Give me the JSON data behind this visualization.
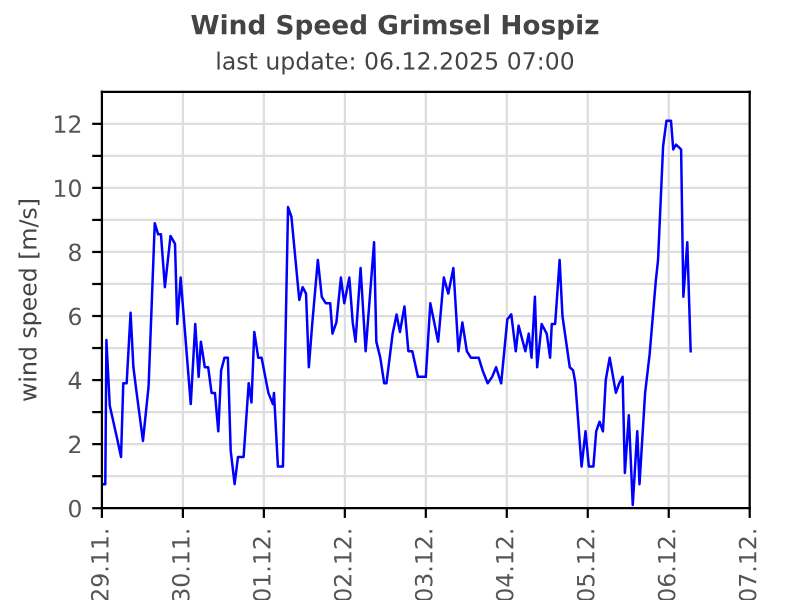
{
  "chart_data": {
    "type": "line",
    "title": "Wind Speed Grimsel Hospiz",
    "subtitle": "last update: 06.12.2025 07:00",
    "ylabel": "wind speed [m/s]",
    "x": [
      "2025-11-29T00:00",
      "2025-11-29T01:00",
      "2025-11-29T01:20",
      "2025-11-29T02:20",
      "2025-11-29T04:40",
      "2025-11-29T05:40",
      "2025-11-29T06:20",
      "2025-11-29T07:20",
      "2025-11-29T08:30",
      "2025-11-29T09:20",
      "2025-11-29T10:10",
      "2025-11-29T12:10",
      "2025-11-29T13:50",
      "2025-11-29T15:40",
      "2025-11-29T16:40",
      "2025-11-29T17:30",
      "2025-11-29T18:40",
      "2025-11-29T20:20",
      "2025-11-29T21:40",
      "2025-11-29T22:20",
      "2025-11-29T23:20",
      "2025-11-30T02:20",
      "2025-11-30T03:40",
      "2025-11-30T04:40",
      "2025-11-30T05:20",
      "2025-11-30T06:30",
      "2025-11-30T07:30",
      "2025-11-30T08:30",
      "2025-11-30T09:30",
      "2025-11-30T10:30",
      "2025-11-30T11:20",
      "2025-11-30T12:20",
      "2025-11-30T13:20",
      "2025-11-30T14:10",
      "2025-11-30T15:20",
      "2025-11-30T16:20",
      "2025-11-30T18:00",
      "2025-11-30T19:30",
      "2025-11-30T20:20",
      "2025-11-30T21:10",
      "2025-11-30T22:20",
      "2025-11-30T23:20",
      "2025-12-01T01:20",
      "2025-12-01T02:40",
      "2025-12-01T03:00",
      "2025-12-01T04:10",
      "2025-12-01T05:40",
      "2025-12-01T07:10",
      "2025-12-01T08:10",
      "2025-12-01T10:30",
      "2025-12-01T11:30",
      "2025-12-01T12:30",
      "2025-12-01T13:20",
      "2025-12-01T14:20",
      "2025-12-01T16:00",
      "2025-12-01T17:10",
      "2025-12-01T18:20",
      "2025-12-01T19:40",
      "2025-12-01T20:20",
      "2025-12-01T21:30",
      "2025-12-01T22:50",
      "2025-12-01T23:50",
      "2025-12-02T01:20",
      "2025-12-02T02:20",
      "2025-12-02T03:10",
      "2025-12-02T04:40",
      "2025-12-02T06:10",
      "2025-12-02T08:40",
      "2025-12-02T09:20",
      "2025-12-02T10:30",
      "2025-12-02T11:40",
      "2025-12-02T12:20",
      "2025-12-02T14:10",
      "2025-12-02T15:20",
      "2025-12-02T16:20",
      "2025-12-02T17:40",
      "2025-12-02T18:50",
      "2025-12-02T20:00",
      "2025-12-02T21:40",
      "2025-12-03T00:00",
      "2025-12-03T01:20",
      "2025-12-03T03:40",
      "2025-12-03T05:20",
      "2025-12-03T06:40",
      "2025-12-03T08:10",
      "2025-12-03T09:40",
      "2025-12-03T10:50",
      "2025-12-03T12:10",
      "2025-12-03T13:20",
      "2025-12-03T14:40",
      "2025-12-03T15:40",
      "2025-12-03T16:50",
      "2025-12-03T18:20",
      "2025-12-03T19:40",
      "2025-12-03T20:50",
      "2025-12-03T22:20",
      "2025-12-04T00:10",
      "2025-12-04T01:20",
      "2025-12-04T02:40",
      "2025-12-04T03:30",
      "2025-12-04T05:30",
      "2025-12-04T06:30",
      "2025-12-04T07:20",
      "2025-12-04T08:20",
      "2025-12-04T09:00",
      "2025-12-04T10:20",
      "2025-12-04T11:50",
      "2025-12-04T12:50",
      "2025-12-04T13:20",
      "2025-12-04T14:20",
      "2025-12-04T15:40",
      "2025-12-04T16:30",
      "2025-12-04T18:40",
      "2025-12-04T19:40",
      "2025-12-04T20:20",
      "2025-12-04T22:10",
      "2025-12-04T23:20",
      "2025-12-05T00:20",
      "2025-12-05T01:40",
      "2025-12-05T02:30",
      "2025-12-05T03:30",
      "2025-12-05T04:30",
      "2025-12-05T05:20",
      "2025-12-05T06:30",
      "2025-12-05T08:20",
      "2025-12-05T09:20",
      "2025-12-05T10:20",
      "2025-12-05T11:00",
      "2025-12-05T12:10",
      "2025-12-05T13:20",
      "2025-12-05T14:40",
      "2025-12-05T15:20",
      "2025-12-05T17:00",
      "2025-12-05T18:20",
      "2025-12-05T20:10",
      "2025-12-05T20:50",
      "2025-12-05T22:20",
      "2025-12-05T23:20",
      "2025-12-06T00:40",
      "2025-12-06T01:20",
      "2025-12-06T02:10",
      "2025-12-06T03:40",
      "2025-12-06T04:20",
      "2025-12-06T05:30",
      "2025-12-06T06:30"
    ],
    "series": [
      {
        "color": "#0000ff",
        "values": [
          0.75,
          0.75,
          5.25,
          3.2,
          2.1,
          1.6,
          3.9,
          3.9,
          6.1,
          4.4,
          3.7,
          2.1,
          3.8,
          8.9,
          8.55,
          8.55,
          6.9,
          8.5,
          8.25,
          5.75,
          7.2,
          3.25,
          5.75,
          4.1,
          5.2,
          4.4,
          4.4,
          3.6,
          3.6,
          2.4,
          4.3,
          4.7,
          4.7,
          1.8,
          0.75,
          1.6,
          1.6,
          3.9,
          3.3,
          5.5,
          4.7,
          4.7,
          3.6,
          3.25,
          3.6,
          1.3,
          1.3,
          9.4,
          9.1,
          6.5,
          6.9,
          6.7,
          4.4,
          5.75,
          7.75,
          6.6,
          6.4,
          6.4,
          5.45,
          5.8,
          7.2,
          6.4,
          7.2,
          5.8,
          5.2,
          7.5,
          4.9,
          8.3,
          5.2,
          4.7,
          3.9,
          3.9,
          5.45,
          6.05,
          5.5,
          6.3,
          4.9,
          4.9,
          4.1,
          4.1,
          6.4,
          5.2,
          7.2,
          6.7,
          7.5,
          4.9,
          5.8,
          4.9,
          4.7,
          4.7,
          4.7,
          4.3,
          3.9,
          4.1,
          4.4,
          3.9,
          5.9,
          6.05,
          4.9,
          5.7,
          4.9,
          5.45,
          4.7,
          6.6,
          4.4,
          5.75,
          5.45,
          4.7,
          5.75,
          5.75,
          7.75,
          6.0,
          4.4,
          4.3,
          3.9,
          1.3,
          2.4,
          1.3,
          1.3,
          2.4,
          2.7,
          2.4,
          4.0,
          4.7,
          3.6,
          3.9,
          4.1,
          1.1,
          2.9,
          0.1,
          2.4,
          0.75,
          3.6,
          4.8,
          7.1,
          7.75,
          11.3,
          12.1,
          12.1,
          11.2,
          11.35,
          11.2,
          6.6,
          8.3,
          4.9
        ]
      }
    ],
    "xlim": [
      "2025-11-29T00:00",
      "2025-12-07T00:00"
    ],
    "xticks": [
      {
        "value": "2025-11-29T00:00",
        "label": "29.11."
      },
      {
        "value": "2025-11-30T00:00",
        "label": "30.11."
      },
      {
        "value": "2025-12-01T00:00",
        "label": "01.12."
      },
      {
        "value": "2025-12-02T00:00",
        "label": "02.12."
      },
      {
        "value": "2025-12-03T00:00",
        "label": "03.12."
      },
      {
        "value": "2025-12-04T00:00",
        "label": "04.12."
      },
      {
        "value": "2025-12-05T00:00",
        "label": "05.12."
      },
      {
        "value": "2025-12-06T00:00",
        "label": "06.12."
      },
      {
        "value": "2025-12-07T00:00",
        "label": "07.12."
      }
    ],
    "ylim": [
      0,
      13
    ],
    "yticks": [
      0,
      {
        "value": 1,
        "label": null
      },
      2,
      {
        "value": 3,
        "label": null
      },
      4,
      {
        "value": 5,
        "label": null
      },
      6,
      {
        "value": 7,
        "label": null
      },
      8,
      {
        "value": 9,
        "label": null
      },
      10,
      {
        "value": 11,
        "label": null
      },
      12
    ],
    "grid": true,
    "legend": false,
    "marker": "none",
    "line_style": "solid"
  }
}
